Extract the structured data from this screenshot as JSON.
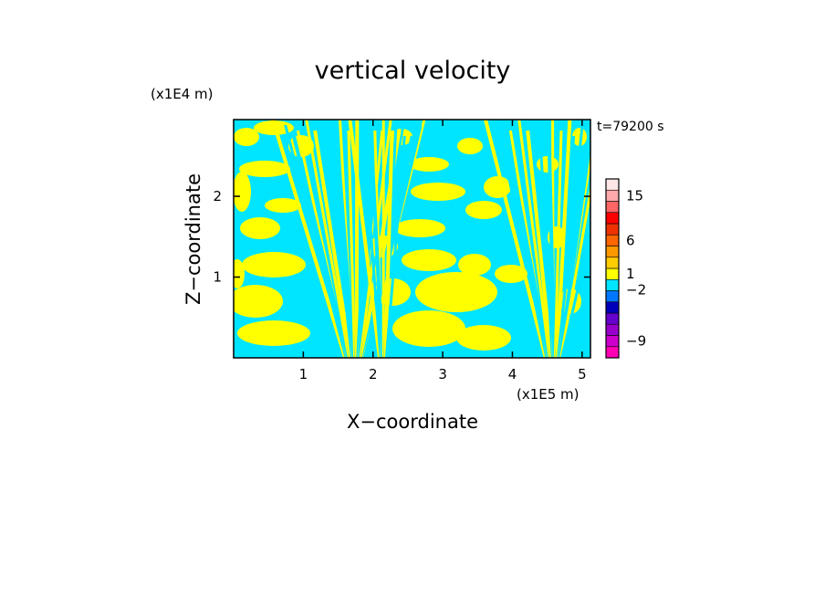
{
  "chart_data": {
    "type": "heatmap",
    "title": "vertical velocity",
    "xlabel": "X−coordinate",
    "ylabel": "Z−coordinate",
    "x_scale_label": "(x1E5 m)",
    "y_scale_label": "(x1E4 m)",
    "time_label": "t=79200 s",
    "xlim": [
      0,
      5.12
    ],
    "ylim": [
      0,
      2.95
    ],
    "x_ticks": [
      {
        "value": 1,
        "label": "1"
      },
      {
        "value": 2,
        "label": "2"
      },
      {
        "value": 3,
        "label": "3"
      },
      {
        "value": 4,
        "label": "4"
      },
      {
        "value": 5,
        "label": "5"
      }
    ],
    "y_ticks": [
      {
        "value": 1,
        "label": "1"
      },
      {
        "value": 2,
        "label": "2"
      }
    ],
    "field_colors": {
      "positive": "#ffff00",
      "negative": "#00e5ff"
    },
    "colorbar": {
      "bins": [
        {
          "color": "#ff00b4"
        },
        {
          "color": "#cc00cc"
        },
        {
          "color": "#9900cc"
        },
        {
          "color": "#6600cc"
        },
        {
          "color": "#0000bb"
        },
        {
          "color": "#0077ff"
        },
        {
          "color": "#00e5ff"
        },
        {
          "color": "#ffff00"
        },
        {
          "color": "#ffcc00"
        },
        {
          "color": "#ff9900"
        },
        {
          "color": "#ff6600"
        },
        {
          "color": "#ee3300"
        },
        {
          "color": "#ff0000"
        },
        {
          "color": "#ff6666"
        },
        {
          "color": "#ffaaaa"
        },
        {
          "color": "#ffe6e6"
        }
      ],
      "labels": [
        {
          "text": "15",
          "bin": 14
        },
        {
          "text": "6",
          "bin": 10
        },
        {
          "text": "1",
          "bin": 7
        },
        {
          "text": "−2",
          "bin": 5.6
        },
        {
          "text": "−9",
          "bin": 1
        }
      ]
    }
  }
}
